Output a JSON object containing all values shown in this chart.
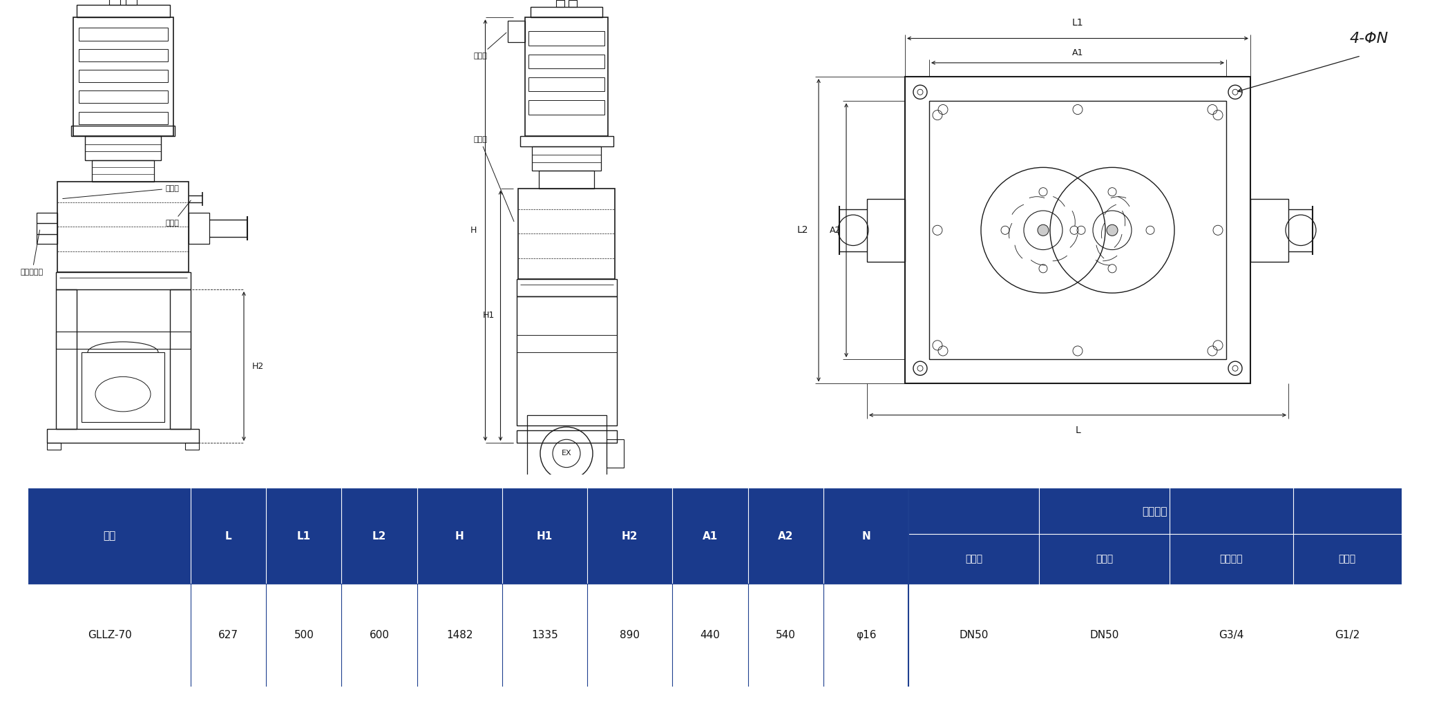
{
  "bg_color": "#ffffff",
  "line_color": "#1a1a1a",
  "table": {
    "header_bg": "#1a3a8c",
    "header_text_color": "#ffffff",
    "row_bg": "#ffffff",
    "row_text_color": "#111111",
    "border_color": "#1e3f8f",
    "col_headers_left": [
      "型号",
      "L",
      "L1",
      "L2",
      "H",
      "H1",
      "H2",
      "A1",
      "A2",
      "N"
    ],
    "col_headers_right_top": "接口口径",
    "col_headers_right_bottom": [
      "进气口",
      "排气口",
      "冷却水口",
      "排液口"
    ],
    "data_row_left": [
      "GLLZ-70",
      "627",
      "500",
      "600",
      "1482",
      "1335",
      "890",
      "440",
      "540",
      "φ16"
    ],
    "data_row_right": [
      "DN50",
      "DN50",
      "G3/4",
      "G1/2"
    ]
  }
}
